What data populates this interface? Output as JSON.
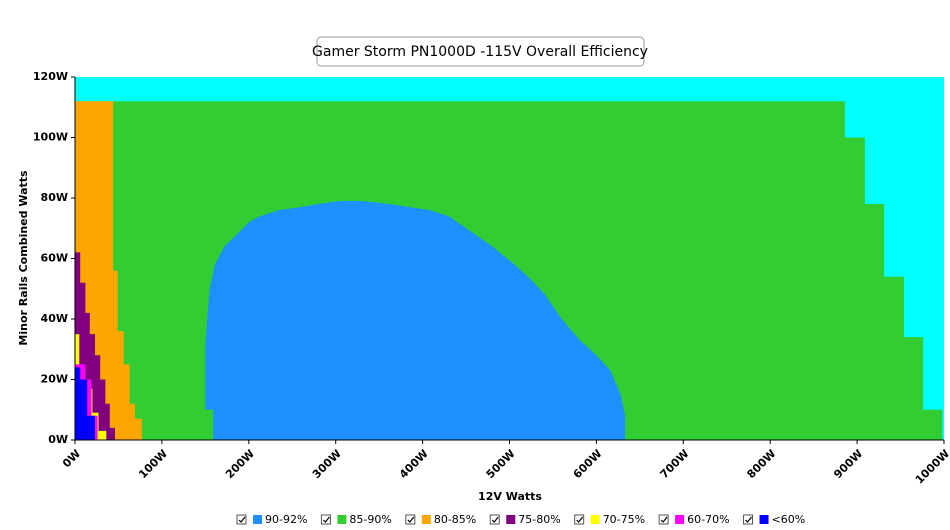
{
  "chart_data": {
    "type": "area",
    "title": "Gamer Storm PN1000D -115V Overall Efficiency",
    "x_label": "12V Watts",
    "y_label": "Minor Rails Combined Watts",
    "xlim": [
      0,
      1000
    ],
    "ylim": [
      0,
      120
    ],
    "xticks": [
      {
        "value": 0,
        "label": "0W"
      },
      {
        "value": 100,
        "label": "100W"
      },
      {
        "value": 200,
        "label": "200W"
      },
      {
        "value": 300,
        "label": "300W"
      },
      {
        "value": 400,
        "label": "400W"
      },
      {
        "value": 500,
        "label": "500W"
      },
      {
        "value": 600,
        "label": "600W"
      },
      {
        "value": 700,
        "label": "700W"
      },
      {
        "value": 800,
        "label": "800W"
      },
      {
        "value": 900,
        "label": "900W"
      },
      {
        "value": 1000,
        "label": "1000W"
      }
    ],
    "yticks": [
      {
        "value": 0,
        "label": "0W"
      },
      {
        "value": 20,
        "label": "20W"
      },
      {
        "value": 40,
        "label": "40W"
      },
      {
        "value": 60,
        "label": "60W"
      },
      {
        "value": 80,
        "label": "80W"
      },
      {
        "value": 100,
        "label": "100W"
      },
      {
        "value": 120,
        "label": "120W"
      }
    ],
    "series": [
      {
        "name": "90-92%",
        "color": "#1e90ff",
        "x": [
          159,
          159,
          150,
          150,
          152,
          155,
          161,
          172,
          190,
          200,
          213,
          235,
          259,
          280,
          305,
          330,
          362,
          385,
          408,
          430,
          455,
          480,
          506,
          525,
          541,
          560,
          581,
          600,
          616,
          628,
          633,
          633
        ],
        "values": [
          0,
          10,
          10,
          31,
          40,
          50,
          58,
          64,
          69,
          72,
          74,
          76,
          77,
          78,
          79,
          79,
          78,
          77,
          76,
          74,
          69,
          64,
          58,
          53,
          48,
          40,
          33,
          28,
          23,
          15,
          8,
          0
        ]
      },
      {
        "name": "85-90%",
        "color": "#32cd32",
        "x": [
          0,
          886,
          886,
          909,
          909,
          931,
          931,
          954,
          954,
          976,
          976,
          998,
          998,
          0
        ],
        "values": [
          112,
          112,
          100,
          100,
          78,
          78,
          54,
          54,
          34,
          34,
          10,
          10,
          0,
          0
        ]
      },
      {
        "name": "80-85%",
        "color": "#ffa500",
        "x": [
          0,
          44,
          44,
          49,
          49,
          56,
          56,
          63,
          63,
          69,
          69,
          77,
          77,
          0
        ],
        "values": [
          112,
          112,
          56,
          56,
          36,
          36,
          25,
          25,
          12,
          12,
          7,
          7,
          0,
          0
        ]
      },
      {
        "name": "75-80%",
        "color": "#800080",
        "x": [
          0,
          6,
          6,
          12,
          12,
          17,
          17,
          23,
          23,
          29,
          29,
          35,
          35,
          40,
          40,
          46,
          46,
          0
        ],
        "values": [
          62,
          62,
          52,
          52,
          42,
          42,
          35,
          35,
          28,
          28,
          20,
          20,
          12,
          12,
          4,
          4,
          0,
          0
        ]
      },
      {
        "name": "70-75%",
        "color": "#ffff00",
        "x": [
          0,
          5,
          5,
          12,
          12,
          20,
          20,
          27,
          27,
          36,
          36,
          0
        ],
        "values": [
          35,
          35,
          24,
          24,
          17,
          17,
          9,
          9,
          3,
          3,
          0,
          0
        ]
      },
      {
        "name": "60-70%",
        "color": "#ff00ff",
        "x": [
          0,
          12,
          12,
          19,
          19,
          26,
          26,
          0
        ],
        "values": [
          25,
          25,
          20,
          20,
          8,
          8,
          0,
          0
        ]
      },
      {
        "name": "<60%",
        "color": "#0000ff",
        "x": [
          0,
          6,
          6,
          14,
          14,
          23,
          23,
          0
        ],
        "values": [
          24,
          24,
          20,
          20,
          8,
          8,
          0,
          0
        ]
      }
    ]
  }
}
